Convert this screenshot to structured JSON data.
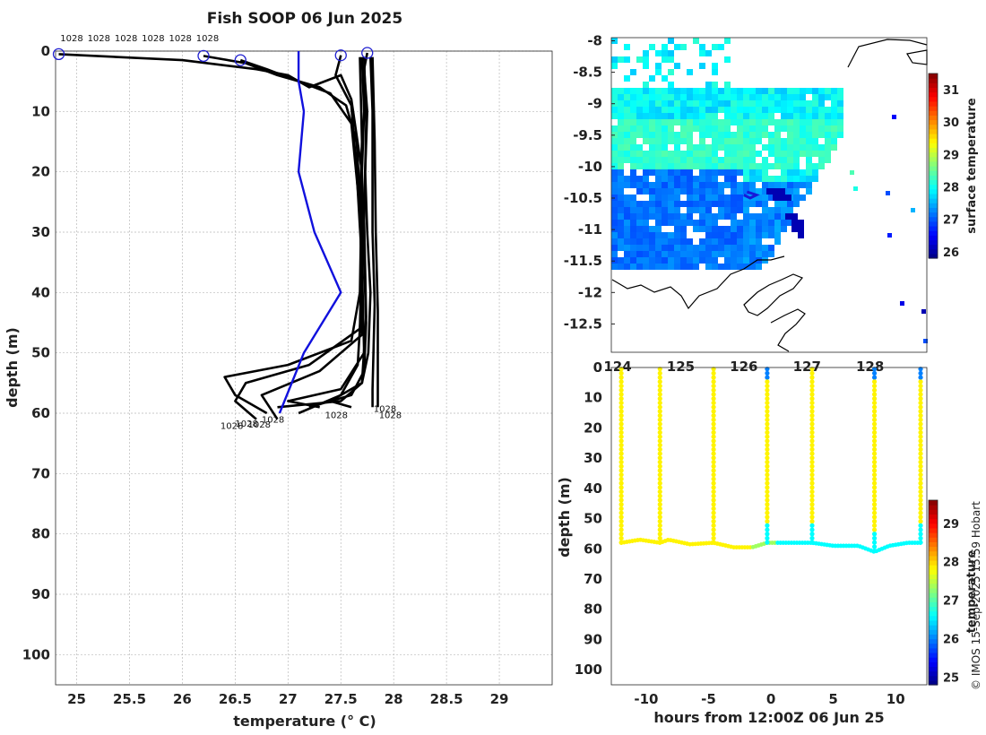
{
  "credit": "© IMOS 15-Sep-2025 15:59 Hobart",
  "chart_data": [
    {
      "id": "profile",
      "type": "line",
      "title": "Fish SOOP 06 Jun 2025",
      "xlabel": "temperature (° C)",
      "ylabel": "depth (m)",
      "xlim": [
        24.8,
        29.5
      ],
      "ylim": [
        0,
        105
      ],
      "x_ticks": [
        "25",
        "25.5",
        "26",
        "26.5",
        "27",
        "27.5",
        "28",
        "28.5",
        "29"
      ],
      "y_ticks": [
        "0",
        "10",
        "20",
        "30",
        "40",
        "50",
        "60",
        "70",
        "80",
        "90",
        "100"
      ],
      "grid": true,
      "top_labels": [
        "1028",
        "1028",
        "1028",
        "1028",
        "1028",
        "1028"
      ],
      "bottom_labels": [
        "1028",
        "1028",
        "1028",
        "1028",
        "1028",
        "1028",
        "1028"
      ],
      "start_markers": [
        [
          24.83,
          0.5
        ],
        [
          26.2,
          0.8
        ],
        [
          26.55,
          1.5
        ],
        [
          27.5,
          0.7
        ],
        [
          27.75,
          0.3
        ]
      ],
      "mean_profile": {
        "name": "mean",
        "color": "#1010dd",
        "points": [
          [
            27.1,
            0
          ],
          [
            27.1,
            5
          ],
          [
            27.15,
            10
          ],
          [
            27.1,
            20
          ],
          [
            27.25,
            30
          ],
          [
            27.5,
            40
          ],
          [
            27.15,
            50
          ],
          [
            26.92,
            60
          ]
        ]
      },
      "profiles": [
        {
          "points": [
            [
              24.83,
              0.5
            ],
            [
              26.0,
              1.5
            ],
            [
              26.7,
              3
            ],
            [
              27.0,
              4
            ],
            [
              27.2,
              6
            ],
            [
              27.5,
              4
            ],
            [
              27.6,
              8
            ],
            [
              27.7,
              20
            ],
            [
              27.68,
              40
            ],
            [
              27.6,
              48
            ],
            [
              27.0,
              52
            ],
            [
              26.4,
              54
            ],
            [
              26.5,
              57
            ],
            [
              26.8,
              60
            ]
          ]
        },
        {
          "points": [
            [
              26.2,
              0.8
            ],
            [
              26.6,
              2
            ],
            [
              26.9,
              4
            ],
            [
              27.3,
              6
            ],
            [
              27.55,
              9
            ],
            [
              27.65,
              15
            ],
            [
              27.7,
              30
            ],
            [
              27.68,
              46
            ],
            [
              27.2,
              52
            ],
            [
              26.6,
              55
            ],
            [
              26.5,
              58
            ],
            [
              26.7,
              61
            ]
          ]
        },
        {
          "points": [
            [
              26.55,
              1.5
            ],
            [
              26.8,
              3
            ],
            [
              27.1,
              5
            ],
            [
              27.4,
              7
            ],
            [
              27.6,
              12
            ],
            [
              27.7,
              30
            ],
            [
              27.7,
              47
            ],
            [
              27.3,
              53
            ],
            [
              26.75,
              57
            ],
            [
              26.9,
              61
            ]
          ]
        },
        {
          "points": [
            [
              27.5,
              0.7
            ],
            [
              27.45,
              4
            ],
            [
              27.6,
              9
            ],
            [
              27.65,
              20
            ],
            [
              27.7,
              35
            ],
            [
              27.72,
              50
            ],
            [
              27.5,
              56
            ],
            [
              27.0,
              58
            ],
            [
              27.3,
              59
            ]
          ]
        },
        {
          "points": [
            [
              27.75,
              0.3
            ],
            [
              27.72,
              3
            ],
            [
              27.75,
              10
            ],
            [
              27.73,
              20
            ],
            [
              27.75,
              30
            ],
            [
              27.78,
              40
            ],
            [
              27.76,
              50
            ],
            [
              27.7,
              55
            ],
            [
              27.4,
              58
            ],
            [
              27.6,
              59
            ]
          ]
        },
        {
          "points": [
            [
              27.7,
              1
            ],
            [
              27.72,
              10
            ],
            [
              27.7,
              20
            ],
            [
              27.72,
              35
            ],
            [
              27.74,
              45
            ],
            [
              27.72,
              53
            ],
            [
              27.6,
              57
            ],
            [
              27.2,
              59
            ]
          ]
        },
        {
          "points": [
            [
              27.68,
              1
            ],
            [
              27.7,
              15
            ],
            [
              27.68,
              25
            ],
            [
              27.7,
              40
            ],
            [
              27.66,
              52
            ],
            [
              27.5,
              57
            ],
            [
              27.1,
              60
            ]
          ]
        },
        {
          "points": [
            [
              27.78,
              1
            ],
            [
              27.8,
              10
            ],
            [
              27.8,
              30
            ],
            [
              27.82,
              42
            ],
            [
              27.8,
              56
            ],
            [
              27.8,
              59
            ]
          ]
        },
        {
          "points": [
            [
              27.8,
              1
            ],
            [
              27.82,
              15
            ],
            [
              27.83,
              30
            ],
            [
              27.85,
              43
            ],
            [
              27.85,
              58
            ],
            [
              27.85,
              59
            ]
          ]
        },
        {
          "points": [
            [
              27.72,
              1
            ],
            [
              27.74,
              12
            ],
            [
              27.72,
              28
            ],
            [
              27.74,
              44
            ],
            [
              27.7,
              55
            ],
            [
              27.5,
              58
            ],
            [
              26.9,
              59
            ]
          ]
        }
      ]
    },
    {
      "id": "map",
      "type": "heatmap",
      "xlabel": "",
      "ylabel": "",
      "xlim": [
        123.9,
        128.9
      ],
      "ylim": [
        -12.95,
        -7.95
      ],
      "x_ticks": [
        "124",
        "125",
        "126",
        "127",
        "128"
      ],
      "y_ticks": [
        "-8",
        "-8.5",
        "-9",
        "-9.5",
        "-10",
        "-10.5",
        "-11",
        "-11.5",
        "-12",
        "-12.5"
      ],
      "colorbar": {
        "label": "surface temperature",
        "range": [
          25.8,
          31.5
        ],
        "ticks": [
          "26",
          "27",
          "28",
          "29",
          "30",
          "31"
        ]
      },
      "vessel_track": [
        [
          126.0,
          -10.45
        ],
        [
          126.1,
          -10.5
        ],
        [
          126.2,
          -10.45
        ],
        [
          126.05,
          -10.4
        ]
      ]
    },
    {
      "id": "section",
      "type": "scatter",
      "xlabel": "hours from 12:00Z 06 Jun 25",
      "ylabel": "depth (m)",
      "xlim": [
        -12.8,
        12.5
      ],
      "ylim": [
        0,
        105
      ],
      "x_ticks": [
        "-10",
        "-5",
        "0",
        "5",
        "10"
      ],
      "y_ticks": [
        "0",
        "10",
        "20",
        "30",
        "40",
        "50",
        "60",
        "70",
        "80",
        "90",
        "100"
      ],
      "colorbar": {
        "label": "temperature",
        "range": [
          24.8,
          29.6
        ],
        "ticks": [
          "25",
          "26",
          "27",
          "28",
          "29"
        ]
      },
      "casts": [
        -12.0,
        -8.9,
        -4.6,
        -0.3,
        3.3,
        8.3,
        12.0
      ],
      "bottom_series": [
        [
          -12.0,
          58
        ],
        [
          -10.5,
          57
        ],
        [
          -8.9,
          58
        ],
        [
          -8.2,
          57
        ],
        [
          -6.5,
          58.5
        ],
        [
          -4.6,
          58
        ],
        [
          -3.0,
          59.5
        ],
        [
          -1.5,
          59.5
        ],
        [
          -0.3,
          58
        ],
        [
          1.5,
          58
        ],
        [
          3.3,
          58
        ],
        [
          5.0,
          59
        ],
        [
          7.0,
          59
        ],
        [
          8.3,
          61
        ],
        [
          9.5,
          59
        ],
        [
          11.0,
          58
        ],
        [
          12.0,
          58
        ]
      ]
    }
  ]
}
